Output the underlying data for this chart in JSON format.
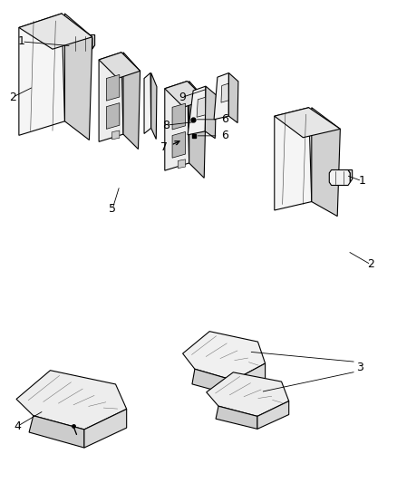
{
  "title": "",
  "background_color": "#ffffff",
  "line_color": "#000000",
  "text_color": "#000000",
  "font_size": 9,
  "line_width": 0.7
}
